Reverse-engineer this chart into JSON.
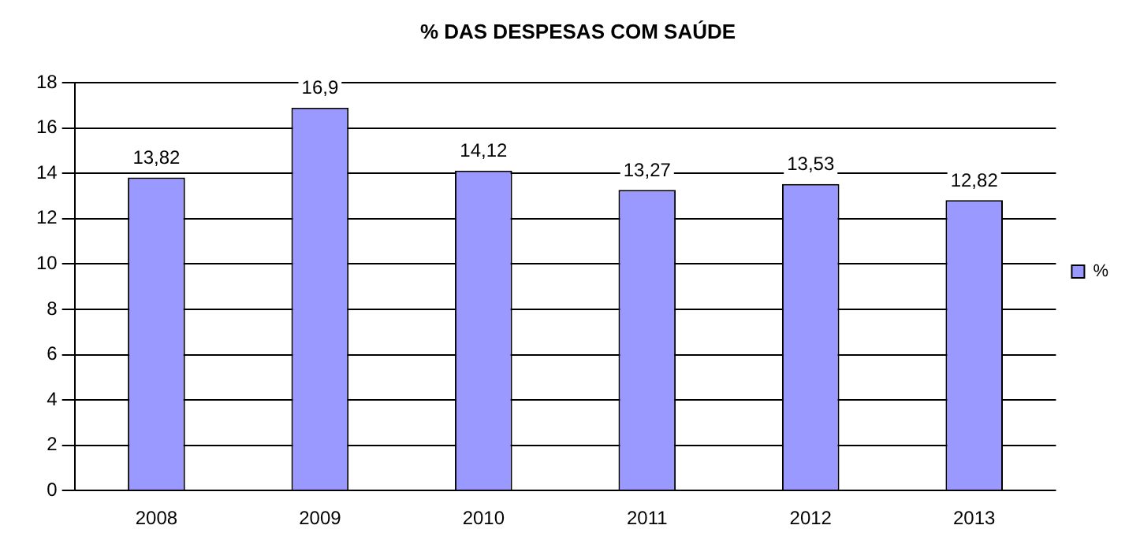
{
  "chart_data": {
    "type": "bar",
    "title": "% DAS DESPESAS COM SAÚDE",
    "categories": [
      "2008",
      "2009",
      "2010",
      "2011",
      "2012",
      "2013"
    ],
    "series": [
      {
        "name": "%",
        "color": "#9999ff",
        "values": [
          13.82,
          16.9,
          14.12,
          13.27,
          13.53,
          12.82
        ],
        "value_labels": [
          "13,82",
          "16,9",
          "14,12",
          "13,27",
          "13,53",
          "12,82"
        ]
      }
    ],
    "ylim": [
      0,
      18
    ],
    "yticks": [
      0,
      2,
      4,
      6,
      8,
      10,
      12,
      14,
      16,
      18
    ],
    "grid": "y",
    "legend": "right"
  }
}
